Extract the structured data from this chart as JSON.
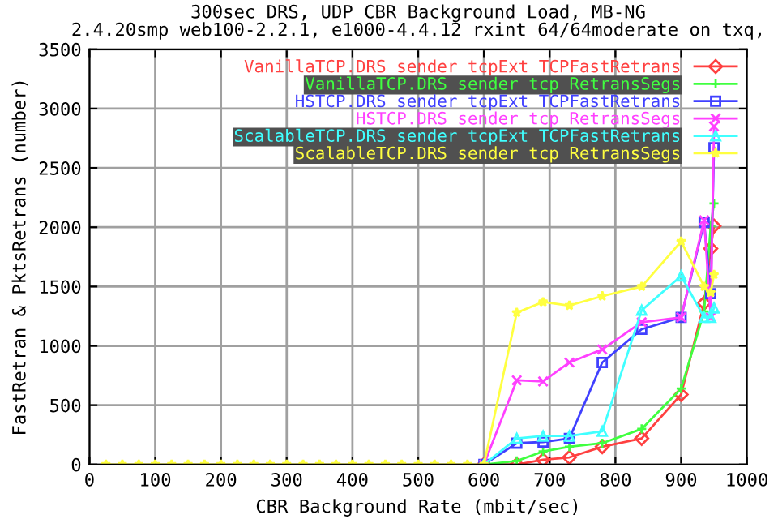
{
  "chart_data": {
    "type": "line",
    "title": "300sec DRS, UDP CBR Background Load, MB-NG\n2.4.20smp web100-2.2.1, e1000-4.4.12 rxint 64/64moderate on txq,",
    "xlabel": "CBR Background Rate (mbit/sec)",
    "ylabel": "FastRetran & PktsRetrans (number)",
    "x": [
      25,
      50,
      75,
      100,
      125,
      150,
      175,
      200,
      225,
      250,
      275,
      300,
      325,
      350,
      375,
      400,
      425,
      450,
      475,
      500,
      525,
      550,
      575,
      600,
      650,
      690,
      730,
      780,
      840,
      900,
      935,
      945,
      950
    ],
    "series": [
      {
        "name": "VanillaTCP.DRS sender tcpExt TCPFastRetrans",
        "color": "#ff4040",
        "marker": "diamond",
        "values": [
          null,
          null,
          null,
          null,
          null,
          null,
          null,
          null,
          null,
          null,
          null,
          null,
          null,
          null,
          null,
          null,
          null,
          null,
          null,
          null,
          null,
          null,
          null,
          0,
          0,
          40,
          60,
          150,
          220,
          590,
          1360,
          1820,
          2010
        ]
      },
      {
        "name": "VanillaTCP.DRS sender tcp RetransSegs",
        "color": "#40ff40",
        "marker": "cross",
        "values": [
          null,
          null,
          null,
          null,
          null,
          null,
          null,
          null,
          null,
          null,
          null,
          null,
          null,
          null,
          null,
          null,
          null,
          null,
          null,
          null,
          null,
          null,
          null,
          0,
          30,
          110,
          150,
          180,
          300,
          640,
          1290,
          2010,
          2200
        ]
      },
      {
        "name": "HSTCP.DRS sender tcpExt TCPFastRetrans",
        "color": "#4040ff",
        "marker": "square",
        "values": [
          null,
          null,
          null,
          null,
          null,
          null,
          null,
          null,
          null,
          null,
          null,
          null,
          null,
          null,
          null,
          null,
          null,
          null,
          null,
          null,
          null,
          null,
          null,
          0,
          180,
          190,
          220,
          860,
          1140,
          1240,
          2040,
          1440,
          2670
        ]
      },
      {
        "name": "HSTCP.DRS sender tcp RetransSegs",
        "color": "#ff40ff",
        "marker": "x",
        "values": [
          null,
          null,
          null,
          null,
          null,
          null,
          null,
          null,
          null,
          null,
          null,
          null,
          null,
          null,
          null,
          null,
          null,
          null,
          null,
          null,
          null,
          null,
          null,
          0,
          710,
          700,
          860,
          970,
          1200,
          1240,
          2060,
          1240,
          2850
        ]
      },
      {
        "name": "ScalableTCP.DRS sender tcpExt TCPFastRetrans",
        "color": "#40ffff",
        "marker": "triangle",
        "values": [
          null,
          null,
          null,
          null,
          null,
          null,
          null,
          null,
          null,
          null,
          null,
          null,
          null,
          null,
          null,
          null,
          null,
          null,
          null,
          null,
          null,
          null,
          null,
          0,
          220,
          240,
          240,
          280,
          1300,
          1590,
          1240,
          1240,
          1320
        ]
      },
      {
        "name": "ScalableTCP.DRS sender tcp RetransSegs",
        "color": "#ffff40",
        "marker": "star",
        "values": [
          0,
          0,
          0,
          0,
          0,
          0,
          0,
          0,
          0,
          0,
          0,
          0,
          0,
          0,
          0,
          0,
          0,
          0,
          0,
          0,
          0,
          0,
          0,
          0,
          1280,
          1370,
          1340,
          1420,
          1500,
          1880,
          1500,
          1450,
          1600
        ]
      }
    ],
    "xlim": [
      0,
      1000
    ],
    "ylim": [
      0,
      3500
    ],
    "xticks": [
      0,
      100,
      200,
      300,
      400,
      500,
      600,
      700,
      800,
      900,
      1000
    ],
    "yticks": [
      0,
      500,
      1000,
      1500,
      2000,
      2500,
      3000,
      3500
    ],
    "grid": true,
    "legend": "top right",
    "line_style": "solid"
  }
}
